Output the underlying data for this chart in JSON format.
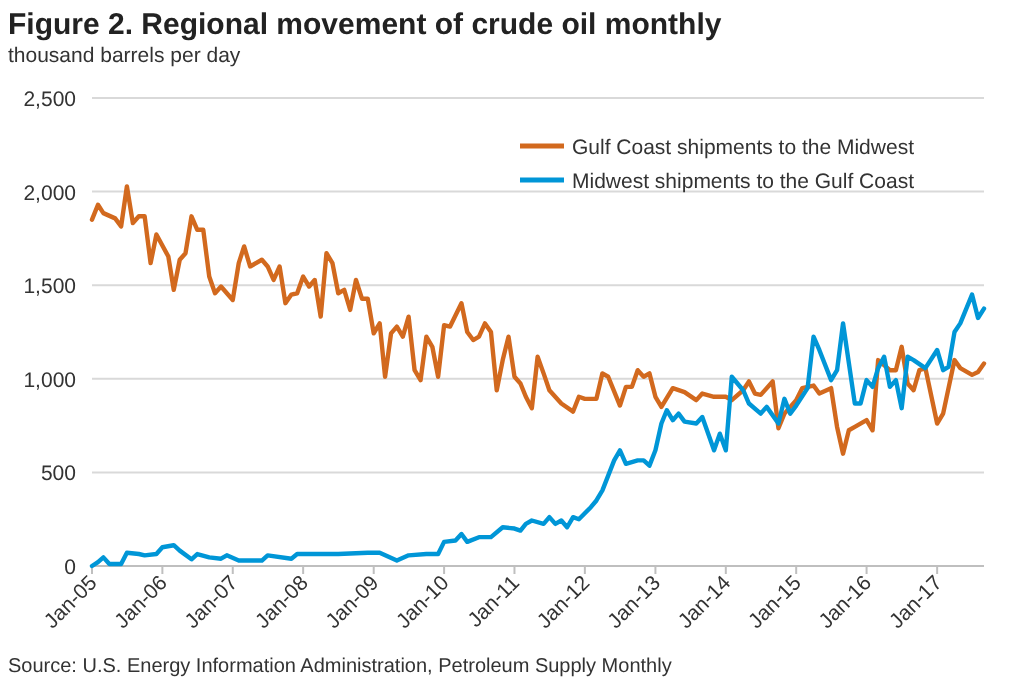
{
  "chart_data": {
    "type": "line",
    "title": "Figure 2. Regional movement of crude oil monthly",
    "subtitle": "thousand barrels per day",
    "annotations": [
      "Source: U.S. Energy Information Administration, Petroleum Supply Monthly"
    ],
    "xlim": [
      "2005-01",
      "2017-09"
    ],
    "xticks": [
      {
        "value": "2005-01",
        "label": "Jan-05"
      },
      {
        "value": "2006-01",
        "label": "Jan-06"
      },
      {
        "value": "2007-01",
        "label": "Jan-07"
      },
      {
        "value": "2008-01",
        "label": "Jan-08"
      },
      {
        "value": "2009-01",
        "label": "Jan-09"
      },
      {
        "value": "2010-01",
        "label": "Jan-10"
      },
      {
        "value": "2011-01",
        "label": "Jan-11"
      },
      {
        "value": "2012-01",
        "label": "Jan-12"
      },
      {
        "value": "2013-01",
        "label": "Jan-13"
      },
      {
        "value": "2014-01",
        "label": "Jan-14"
      },
      {
        "value": "2015-01",
        "label": "Jan-15"
      },
      {
        "value": "2016-01",
        "label": "Jan-16"
      },
      {
        "value": "2017-01",
        "label": "Jan-17"
      }
    ],
    "ylim": [
      0,
      2500
    ],
    "yticks": [
      0,
      500,
      {
        "value": 1000,
        "label": "1,000"
      },
      {
        "value": 1500,
        "label": "1,500"
      },
      {
        "value": 2000,
        "label": "2,000"
      },
      {
        "value": 2500,
        "label": "2,500"
      }
    ],
    "grid": "y",
    "legend": "top right",
    "marker": "none",
    "line_style": "solid",
    "series": [
      {
        "name": "Gulf Coast shipments to the Midwest",
        "color": "#d2691e",
        "x": [
          "2005-01",
          "2005-02",
          "2005-03",
          "2005-05",
          "2005-06",
          "2005-07",
          "2005-08",
          "2005-09",
          "2005-10",
          "2005-11",
          "2005-12",
          "2006-02",
          "2006-03",
          "2006-04",
          "2006-05",
          "2006-06",
          "2006-07",
          "2006-08",
          "2006-09",
          "2006-10",
          "2006-11",
          "2007-01",
          "2007-02",
          "2007-03",
          "2007-04",
          "2007-06",
          "2007-07",
          "2007-08",
          "2007-09",
          "2007-10",
          "2007-11",
          "2007-12",
          "2008-01",
          "2008-02",
          "2008-03",
          "2008-04",
          "2008-05",
          "2008-06",
          "2008-07",
          "2008-08",
          "2008-09",
          "2008-10",
          "2008-11",
          "2008-12",
          "2009-01",
          "2009-02",
          "2009-03",
          "2009-04",
          "2009-05",
          "2009-06",
          "2009-07",
          "2009-08",
          "2009-09",
          "2009-10",
          "2009-11",
          "2009-12",
          "2010-01",
          "2010-02",
          "2010-04",
          "2010-05",
          "2010-06",
          "2010-07",
          "2010-08",
          "2010-09",
          "2010-10",
          "2010-11",
          "2010-12",
          "2011-01",
          "2011-02",
          "2011-03",
          "2011-04",
          "2011-05",
          "2011-06",
          "2011-07",
          "2011-09",
          "2011-11",
          "2011-12",
          "2012-01",
          "2012-03",
          "2012-04",
          "2012-05",
          "2012-07",
          "2012-08",
          "2012-09",
          "2012-10",
          "2012-11",
          "2012-12",
          "2013-01",
          "2013-02",
          "2013-04",
          "2013-06",
          "2013-08",
          "2013-09",
          "2013-11",
          "2014-01",
          "2014-02",
          "2014-04",
          "2014-05",
          "2014-06",
          "2014-07",
          "2014-09",
          "2014-10",
          "2014-11",
          "2015-01",
          "2015-02",
          "2015-04",
          "2015-05",
          "2015-07",
          "2015-08",
          "2015-09",
          "2015-10",
          "2015-11",
          "2016-01",
          "2016-02",
          "2016-03",
          "2016-05",
          "2016-06",
          "2016-07",
          "2016-08",
          "2016-09",
          "2016-10",
          "2016-11",
          "2017-01",
          "2017-02",
          "2017-04",
          "2017-05",
          "2017-07",
          "2017-08",
          "2017-09"
        ],
        "values": [
          1850,
          1930,
          1885,
          1857,
          1814,
          2028,
          1832,
          1868,
          1868,
          1618,
          1771,
          1653,
          1475,
          1636,
          1671,
          1868,
          1796,
          1796,
          1546,
          1457,
          1493,
          1421,
          1618,
          1707,
          1600,
          1636,
          1600,
          1528,
          1600,
          1404,
          1450,
          1457,
          1546,
          1493,
          1528,
          1332,
          1671,
          1618,
          1457,
          1475,
          1368,
          1528,
          1428,
          1428,
          1243,
          1296,
          1011,
          1243,
          1279,
          1225,
          1332,
          1046,
          993,
          1225,
          1171,
          1011,
          1286,
          1279,
          1404,
          1250,
          1207,
          1225,
          1296,
          1250,
          939,
          1100,
          1225,
          1011,
          975,
          904,
          843,
          1118,
          1029,
          939,
          868,
          825,
          904,
          893,
          893,
          1029,
          1011,
          857,
          957,
          957,
          1046,
          1011,
          1029,
          904,
          850,
          950,
          929,
          886,
          921,
          904,
          904,
          886,
          939,
          986,
          921,
          914,
          986,
          736,
          814,
          886,
          950,
          964,
          921,
          950,
          743,
          600,
          725,
          743,
          779,
          725,
          1100,
          1046,
          1046,
          1171,
          975,
          939,
          1046,
          1057,
          761,
          814,
          1100,
          1057,
          1021,
          1036,
          1082
        ]
      },
      {
        "name": "Midwest shipments to the Gulf Coast",
        "color": "#0096d7",
        "x": [
          "2005-01",
          "2005-02",
          "2005-03",
          "2005-04",
          "2005-06",
          "2005-07",
          "2005-09",
          "2005-10",
          "2005-12",
          "2006-01",
          "2006-03",
          "2006-04",
          "2006-06",
          "2006-07",
          "2006-09",
          "2006-11",
          "2006-12",
          "2007-02",
          "2007-06",
          "2007-07",
          "2007-11",
          "2007-12",
          "2008-07",
          "2008-12",
          "2009-02",
          "2009-05",
          "2009-07",
          "2009-10",
          "2009-12",
          "2010-01",
          "2010-03",
          "2010-04",
          "2010-05",
          "2010-07",
          "2010-09",
          "2010-11",
          "2011-01",
          "2011-02",
          "2011-03",
          "2011-04",
          "2011-06",
          "2011-07",
          "2011-08",
          "2011-09",
          "2011-10",
          "2011-11",
          "2011-12",
          "2012-02",
          "2012-03",
          "2012-04",
          "2012-06",
          "2012-07",
          "2012-08",
          "2012-10",
          "2012-11",
          "2012-12",
          "2013-01",
          "2013-02",
          "2013-03",
          "2013-04",
          "2013-05",
          "2013-06",
          "2013-08",
          "2013-09",
          "2013-11",
          "2013-12",
          "2014-01",
          "2014-02",
          "2014-04",
          "2014-05",
          "2014-07",
          "2014-08",
          "2014-10",
          "2014-11",
          "2014-12",
          "2015-01",
          "2015-03",
          "2015-04",
          "2015-05",
          "2015-07",
          "2015-08",
          "2015-09",
          "2015-11",
          "2015-12",
          "2016-01",
          "2016-02",
          "2016-03",
          "2016-04",
          "2016-05",
          "2016-06",
          "2016-07",
          "2016-08",
          "2016-09",
          "2016-11",
          "2017-01",
          "2017-02",
          "2017-03",
          "2017-04",
          "2017-05",
          "2017-07",
          "2017-08",
          "2017-09"
        ],
        "values": [
          0,
          21,
          46,
          11,
          11,
          71,
          64,
          57,
          64,
          100,
          111,
          82,
          36,
          64,
          46,
          39,
          57,
          29,
          29,
          57,
          39,
          64,
          64,
          71,
          71,
          29,
          57,
          64,
          64,
          129,
          136,
          171,
          129,
          154,
          154,
          207,
          200,
          189,
          225,
          243,
          225,
          261,
          225,
          243,
          207,
          261,
          250,
          314,
          350,
          404,
          564,
          618,
          546,
          564,
          564,
          536,
          618,
          761,
          832,
          779,
          814,
          771,
          761,
          796,
          618,
          707,
          618,
          1011,
          939,
          868,
          814,
          850,
          761,
          893,
          814,
          857,
          950,
          1225,
          1154,
          993,
          1046,
          1296,
          868,
          868,
          993,
          957,
          1057,
          1118,
          957,
          993,
          843,
          1118,
          1100,
          1057,
          1154,
          1046,
          1064,
          1250,
          1296,
          1450,
          1325,
          1375
        ]
      }
    ]
  }
}
